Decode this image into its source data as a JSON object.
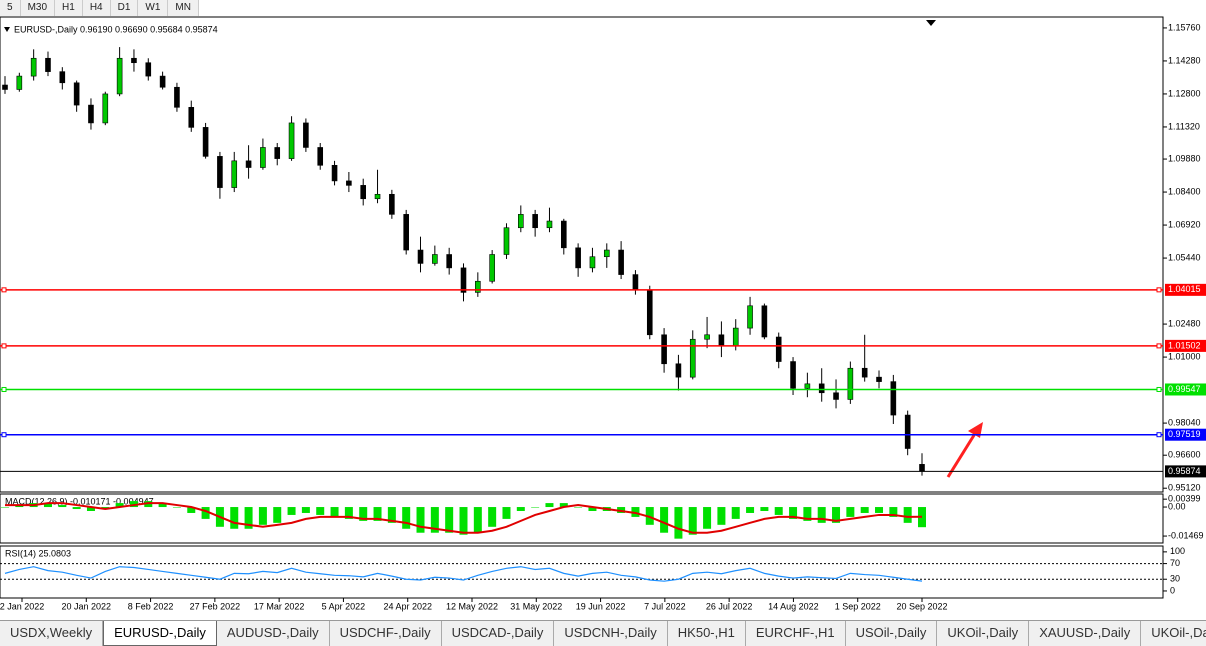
{
  "toolbar": {
    "timeframes": [
      "5",
      "M30",
      "H1",
      "H4",
      "D1",
      "W1",
      "MN"
    ]
  },
  "chart_data": {
    "type": "candlestick",
    "header": "EURUSD-,Daily  0.96190 0.96690 0.95684 0.95874",
    "ylim": [
      0.9495,
      1.1625
    ],
    "yticks": [
      {
        "value": 1.1576,
        "label": "1.15760"
      },
      {
        "value": 1.1428,
        "label": "1.14280"
      },
      {
        "value": 1.128,
        "label": "1.12800"
      },
      {
        "value": 1.1132,
        "label": "1.11320"
      },
      {
        "value": 1.0988,
        "label": "1.09880"
      },
      {
        "value": 1.084,
        "label": "1.08400"
      },
      {
        "value": 1.0692,
        "label": "1.06920"
      },
      {
        "value": 1.0544,
        "label": "1.05440"
      },
      {
        "value": 1.0248,
        "label": "1.02480"
      },
      {
        "value": 1.01,
        "label": "1.01000"
      },
      {
        "value": 0.9804,
        "label": "0.98040"
      },
      {
        "value": 0.966,
        "label": "0.96600"
      },
      {
        "value": 0.9512,
        "label": "0.95120"
      }
    ],
    "levels": [
      {
        "value": 1.04015,
        "color": "#ff0000"
      },
      {
        "value": 1.01502,
        "color": "#ff0000"
      },
      {
        "value": 0.99547,
        "color": "#00e000"
      },
      {
        "value": 0.97519,
        "color": "#0000ff"
      },
      {
        "value": 0.95874,
        "color": "#000000"
      }
    ],
    "bull_color": "#00c800",
    "bear_color": "#000000",
    "open": [
      1.132,
      1.13,
      1.136,
      1.144,
      1.138,
      1.133,
      1.123,
      1.115,
      1.128,
      1.144,
      1.142,
      1.136,
      1.131,
      1.122,
      1.113,
      1.1,
      1.086,
      1.098,
      1.095,
      1.104,
      1.099,
      1.115,
      1.104,
      1.096,
      1.089,
      1.087,
      1.081,
      1.083,
      1.074,
      1.058,
      1.052,
      1.056,
      1.05,
      1.039,
      1.044,
      1.056,
      1.068,
      1.074,
      1.068,
      1.071,
      1.059,
      1.05,
      1.055,
      1.058,
      1.047,
      1.04,
      1.02,
      1.007,
      1.001,
      1.018,
      1.02,
      1.015,
      1.023,
      1.033,
      1.019,
      1.008,
      0.996,
      0.998,
      0.994,
      0.991,
      1.005,
      1.001,
      0.999,
      0.984,
      0.9619
    ],
    "high": [
      1.136,
      1.1375,
      1.148,
      1.147,
      1.14,
      1.134,
      1.126,
      1.129,
      1.149,
      1.148,
      1.144,
      1.138,
      1.133,
      1.125,
      1.115,
      1.102,
      1.102,
      1.105,
      1.108,
      1.106,
      1.118,
      1.117,
      1.106,
      1.098,
      1.093,
      1.09,
      1.094,
      1.085,
      1.076,
      1.064,
      1.06,
      1.059,
      1.052,
      1.048,
      1.058,
      1.07,
      1.078,
      1.076,
      1.077,
      1.072,
      1.061,
      1.059,
      1.061,
      1.062,
      1.049,
      1.042,
      1.023,
      1.011,
      1.022,
      1.028,
      1.026,
      1.027,
      1.037,
      1.034,
      1.021,
      1.01,
      1.003,
      1.005,
      1.0,
      1.008,
      1.02,
      1.004,
      1.002,
      0.986,
      0.9669
    ],
    "low": [
      1.128,
      1.129,
      1.134,
      1.136,
      1.13,
      1.12,
      1.112,
      1.114,
      1.127,
      1.138,
      1.134,
      1.13,
      1.12,
      1.111,
      1.099,
      1.081,
      1.084,
      1.09,
      1.094,
      1.096,
      1.098,
      1.102,
      1.094,
      1.087,
      1.084,
      1.078,
      1.079,
      1.072,
      1.056,
      1.048,
      1.051,
      1.047,
      1.035,
      1.037,
      1.043,
      1.054,
      1.066,
      1.064,
      1.066,
      1.056,
      1.046,
      1.048,
      1.05,
      1.045,
      1.038,
      1.018,
      1.003,
      0.995,
      1.0,
      1.014,
      1.01,
      1.013,
      1.02,
      1.018,
      1.005,
      0.993,
      0.992,
      0.99,
      0.987,
      0.989,
      0.999,
      0.996,
      0.98,
      0.966,
      0.95684
    ],
    "close": [
      1.13,
      1.136,
      1.144,
      1.138,
      1.133,
      1.123,
      1.115,
      1.128,
      1.144,
      1.142,
      1.136,
      1.131,
      1.122,
      1.113,
      1.1,
      1.086,
      1.098,
      1.095,
      1.104,
      1.099,
      1.115,
      1.104,
      1.096,
      1.089,
      1.087,
      1.081,
      1.083,
      1.074,
      1.058,
      1.052,
      1.056,
      1.05,
      1.039,
      1.044,
      1.056,
      1.068,
      1.074,
      1.068,
      1.071,
      1.059,
      1.05,
      1.055,
      1.058,
      1.047,
      1.04,
      1.02,
      1.007,
      1.001,
      1.018,
      1.02,
      1.015,
      1.023,
      1.033,
      1.019,
      1.008,
      0.996,
      0.998,
      0.994,
      0.991,
      1.005,
      1.001,
      0.999,
      0.984,
      0.969,
      0.95874
    ],
    "x_labels": [
      "2 Jan 2022",
      "20 Jan 2022",
      "8 Feb 2022",
      "27 Feb 2022",
      "17 Mar 2022",
      "5 Apr 2022",
      "24 Apr 2022",
      "12 May 2022",
      "31 May 2022",
      "19 Jun 2022",
      "7 Jul 2022",
      "26 Jul 2022",
      "14 Aug 2022",
      "1 Sep 2022",
      "20 Sep 2022"
    ],
    "macd": {
      "label": "MACD(12,26,9) -0.010171 -0.004947",
      "ylim": [
        -0.0182,
        0.0066
      ],
      "yticks": [
        0.00399,
        {
          "value": 0,
          "label": "0.00"
        },
        -0.01469
      ],
      "hist_color": "#00e000",
      "signal_color": "#e00000",
      "histogram": [
        0.0,
        0.001,
        0.002,
        0.002,
        0.001,
        -0.001,
        -0.002,
        -0.001,
        0.002,
        0.003,
        0.003,
        0.002,
        0.0,
        -0.003,
        -0.006,
        -0.01,
        -0.011,
        -0.011,
        -0.009,
        -0.008,
        -0.004,
        -0.003,
        -0.004,
        -0.005,
        -0.006,
        -0.007,
        -0.007,
        -0.008,
        -0.011,
        -0.013,
        -0.013,
        -0.013,
        -0.014,
        -0.013,
        -0.01,
        -0.006,
        -0.002,
        0.0,
        0.002,
        0.002,
        0.0,
        -0.002,
        -0.002,
        -0.003,
        -0.005,
        -0.009,
        -0.013,
        -0.016,
        -0.014,
        -0.011,
        -0.009,
        -0.006,
        -0.003,
        -0.002,
        -0.004,
        -0.006,
        -0.007,
        -0.008,
        -0.008,
        -0.005,
        -0.003,
        -0.003,
        -0.005,
        -0.008,
        -0.0102
      ],
      "signal": [
        0.001,
        0.001,
        0.001,
        0.002,
        0.002,
        0.001,
        0.0,
        -0.001,
        0.0,
        0.001,
        0.002,
        0.002,
        0.001,
        0.0,
        -0.002,
        -0.005,
        -0.008,
        -0.009,
        -0.01,
        -0.009,
        -0.008,
        -0.006,
        -0.005,
        -0.005,
        -0.005,
        -0.006,
        -0.006,
        -0.007,
        -0.008,
        -0.01,
        -0.011,
        -0.012,
        -0.013,
        -0.013,
        -0.012,
        -0.01,
        -0.007,
        -0.004,
        -0.002,
        0.0,
        0.001,
        0.0,
        -0.001,
        -0.002,
        -0.003,
        -0.005,
        -0.008,
        -0.011,
        -0.013,
        -0.013,
        -0.012,
        -0.01,
        -0.008,
        -0.006,
        -0.005,
        -0.005,
        -0.006,
        -0.006,
        -0.007,
        -0.006,
        -0.005,
        -0.004,
        -0.004,
        -0.005,
        -0.0049
      ]
    },
    "rsi": {
      "label": "RSI(14) 25.0803",
      "ylim": [
        -18,
        115
      ],
      "yticks": [
        100,
        70,
        30,
        0
      ],
      "dotted_levels": [
        70,
        30
      ],
      "color": "#1e90ff",
      "values": [
        45,
        55,
        62,
        52,
        48,
        40,
        33,
        50,
        62,
        60,
        55,
        50,
        45,
        40,
        35,
        30,
        45,
        44,
        50,
        47,
        58,
        48,
        44,
        40,
        39,
        36,
        45,
        38,
        30,
        28,
        35,
        33,
        28,
        40,
        50,
        58,
        62,
        55,
        58,
        45,
        38,
        45,
        48,
        40,
        36,
        28,
        25,
        30,
        45,
        48,
        44,
        52,
        58,
        45,
        38,
        33,
        36,
        34,
        32,
        45,
        42,
        40,
        35,
        30,
        25.0803
      ]
    }
  },
  "tabs": [
    "USDX,Weekly",
    "EURUSD-,Daily",
    "AUDUSD-,Daily",
    "USDCHF-,Daily",
    "USDCAD-,Daily",
    "USDCNH-,Daily",
    "HK50-,H1",
    "EURCHF-,H1",
    "USOil-,Daily",
    "UKOil-,Daily",
    "XAUUSD-,Daily",
    "UKOil-,Da"
  ]
}
